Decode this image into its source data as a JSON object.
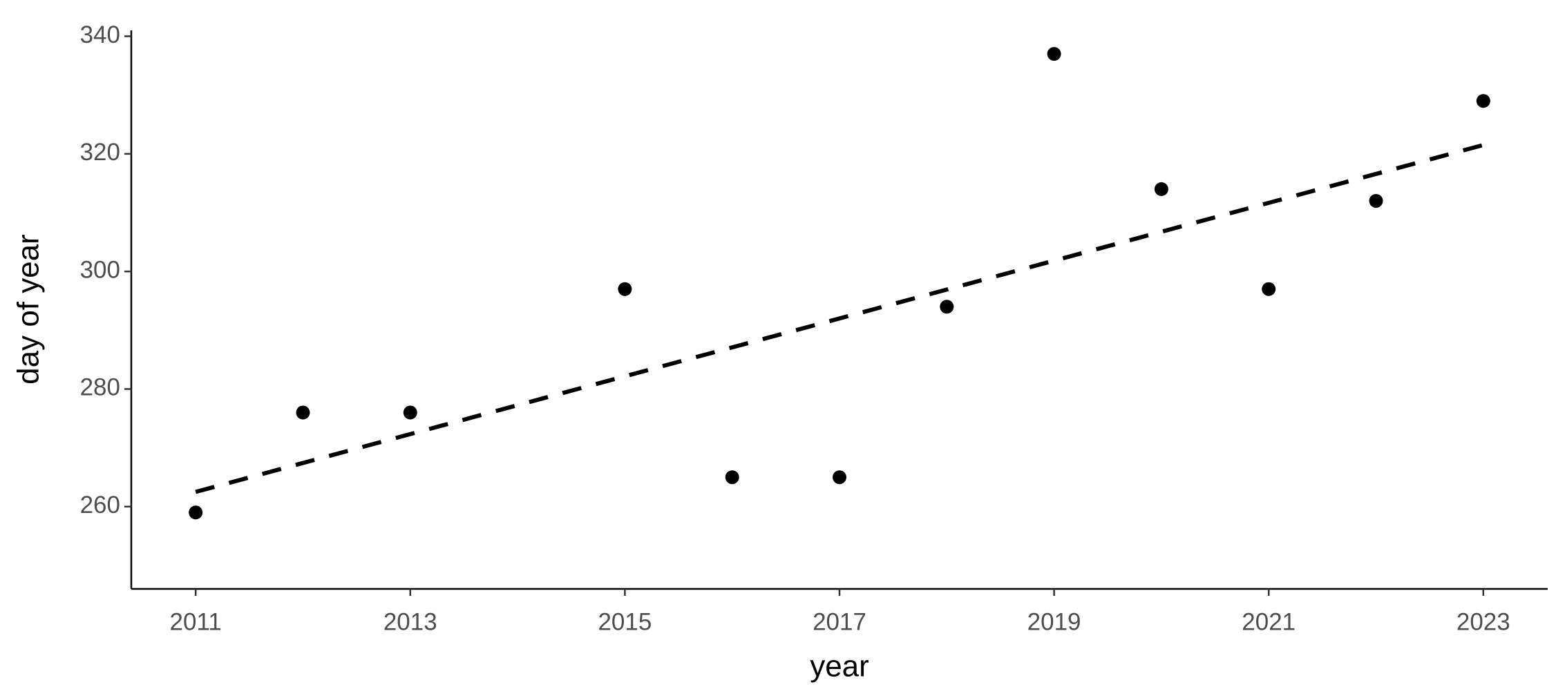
{
  "chart_data": {
    "type": "scatter",
    "x_label": "year",
    "y_label": "day of year",
    "x": [
      2011,
      2012,
      2013,
      2015,
      2016,
      2017,
      2018,
      2019,
      2020,
      2021,
      2022,
      2023
    ],
    "values": [
      259,
      276,
      276,
      297,
      265,
      265,
      294,
      337,
      314,
      297,
      312,
      329
    ],
    "color": "#000000",
    "trend": {
      "x": [
        2011,
        2023
      ],
      "values": [
        262.5,
        321.5
      ],
      "color": "#000000",
      "dashed": true
    },
    "xlim": [
      2010.4,
      2023.6
    ],
    "xticks": [
      2011,
      2013,
      2015,
      2017,
      2019,
      2021,
      2023
    ],
    "ylim": [
      246,
      341
    ],
    "yticks": [
      260,
      280,
      300,
      320,
      340
    ],
    "grid": false
  }
}
